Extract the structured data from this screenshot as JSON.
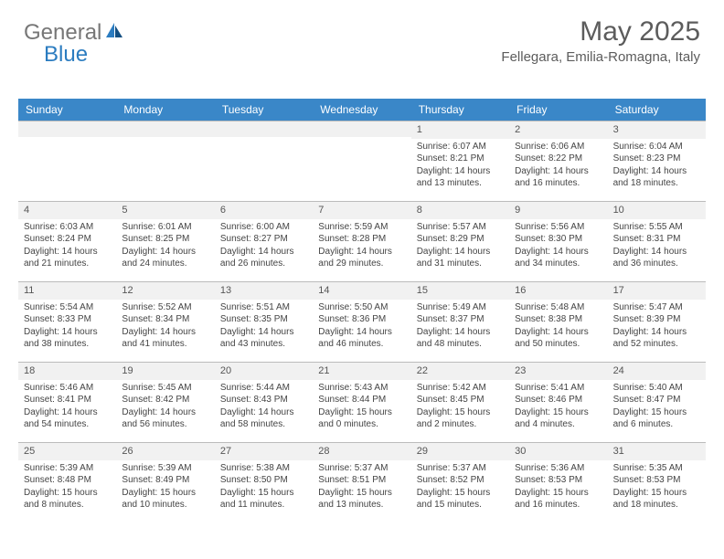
{
  "brand": {
    "part1": "General",
    "part2": "Blue"
  },
  "header": {
    "month_title": "May 2025",
    "location": "Fellegara, Emilia-Romagna, Italy"
  },
  "colors": {
    "header_bg": "#3a87c8",
    "header_text": "#ffffff",
    "num_row_bg": "#f1f1f1",
    "border": "#bbbbbb",
    "text": "#444444",
    "logo_accent": "#2b7cc0"
  },
  "day_names": [
    "Sunday",
    "Monday",
    "Tuesday",
    "Wednesday",
    "Thursday",
    "Friday",
    "Saturday"
  ],
  "weeks": [
    [
      {
        "n": "",
        "sr": "",
        "ss": "",
        "dl": ""
      },
      {
        "n": "",
        "sr": "",
        "ss": "",
        "dl": ""
      },
      {
        "n": "",
        "sr": "",
        "ss": "",
        "dl": ""
      },
      {
        "n": "",
        "sr": "",
        "ss": "",
        "dl": ""
      },
      {
        "n": "1",
        "sr": "Sunrise: 6:07 AM",
        "ss": "Sunset: 8:21 PM",
        "dl": "Daylight: 14 hours and 13 minutes."
      },
      {
        "n": "2",
        "sr": "Sunrise: 6:06 AM",
        "ss": "Sunset: 8:22 PM",
        "dl": "Daylight: 14 hours and 16 minutes."
      },
      {
        "n": "3",
        "sr": "Sunrise: 6:04 AM",
        "ss": "Sunset: 8:23 PM",
        "dl": "Daylight: 14 hours and 18 minutes."
      }
    ],
    [
      {
        "n": "4",
        "sr": "Sunrise: 6:03 AM",
        "ss": "Sunset: 8:24 PM",
        "dl": "Daylight: 14 hours and 21 minutes."
      },
      {
        "n": "5",
        "sr": "Sunrise: 6:01 AM",
        "ss": "Sunset: 8:25 PM",
        "dl": "Daylight: 14 hours and 24 minutes."
      },
      {
        "n": "6",
        "sr": "Sunrise: 6:00 AM",
        "ss": "Sunset: 8:27 PM",
        "dl": "Daylight: 14 hours and 26 minutes."
      },
      {
        "n": "7",
        "sr": "Sunrise: 5:59 AM",
        "ss": "Sunset: 8:28 PM",
        "dl": "Daylight: 14 hours and 29 minutes."
      },
      {
        "n": "8",
        "sr": "Sunrise: 5:57 AM",
        "ss": "Sunset: 8:29 PM",
        "dl": "Daylight: 14 hours and 31 minutes."
      },
      {
        "n": "9",
        "sr": "Sunrise: 5:56 AM",
        "ss": "Sunset: 8:30 PM",
        "dl": "Daylight: 14 hours and 34 minutes."
      },
      {
        "n": "10",
        "sr": "Sunrise: 5:55 AM",
        "ss": "Sunset: 8:31 PM",
        "dl": "Daylight: 14 hours and 36 minutes."
      }
    ],
    [
      {
        "n": "11",
        "sr": "Sunrise: 5:54 AM",
        "ss": "Sunset: 8:33 PM",
        "dl": "Daylight: 14 hours and 38 minutes."
      },
      {
        "n": "12",
        "sr": "Sunrise: 5:52 AM",
        "ss": "Sunset: 8:34 PM",
        "dl": "Daylight: 14 hours and 41 minutes."
      },
      {
        "n": "13",
        "sr": "Sunrise: 5:51 AM",
        "ss": "Sunset: 8:35 PM",
        "dl": "Daylight: 14 hours and 43 minutes."
      },
      {
        "n": "14",
        "sr": "Sunrise: 5:50 AM",
        "ss": "Sunset: 8:36 PM",
        "dl": "Daylight: 14 hours and 46 minutes."
      },
      {
        "n": "15",
        "sr": "Sunrise: 5:49 AM",
        "ss": "Sunset: 8:37 PM",
        "dl": "Daylight: 14 hours and 48 minutes."
      },
      {
        "n": "16",
        "sr": "Sunrise: 5:48 AM",
        "ss": "Sunset: 8:38 PM",
        "dl": "Daylight: 14 hours and 50 minutes."
      },
      {
        "n": "17",
        "sr": "Sunrise: 5:47 AM",
        "ss": "Sunset: 8:39 PM",
        "dl": "Daylight: 14 hours and 52 minutes."
      }
    ],
    [
      {
        "n": "18",
        "sr": "Sunrise: 5:46 AM",
        "ss": "Sunset: 8:41 PM",
        "dl": "Daylight: 14 hours and 54 minutes."
      },
      {
        "n": "19",
        "sr": "Sunrise: 5:45 AM",
        "ss": "Sunset: 8:42 PM",
        "dl": "Daylight: 14 hours and 56 minutes."
      },
      {
        "n": "20",
        "sr": "Sunrise: 5:44 AM",
        "ss": "Sunset: 8:43 PM",
        "dl": "Daylight: 14 hours and 58 minutes."
      },
      {
        "n": "21",
        "sr": "Sunrise: 5:43 AM",
        "ss": "Sunset: 8:44 PM",
        "dl": "Daylight: 15 hours and 0 minutes."
      },
      {
        "n": "22",
        "sr": "Sunrise: 5:42 AM",
        "ss": "Sunset: 8:45 PM",
        "dl": "Daylight: 15 hours and 2 minutes."
      },
      {
        "n": "23",
        "sr": "Sunrise: 5:41 AM",
        "ss": "Sunset: 8:46 PM",
        "dl": "Daylight: 15 hours and 4 minutes."
      },
      {
        "n": "24",
        "sr": "Sunrise: 5:40 AM",
        "ss": "Sunset: 8:47 PM",
        "dl": "Daylight: 15 hours and 6 minutes."
      }
    ],
    [
      {
        "n": "25",
        "sr": "Sunrise: 5:39 AM",
        "ss": "Sunset: 8:48 PM",
        "dl": "Daylight: 15 hours and 8 minutes."
      },
      {
        "n": "26",
        "sr": "Sunrise: 5:39 AM",
        "ss": "Sunset: 8:49 PM",
        "dl": "Daylight: 15 hours and 10 minutes."
      },
      {
        "n": "27",
        "sr": "Sunrise: 5:38 AM",
        "ss": "Sunset: 8:50 PM",
        "dl": "Daylight: 15 hours and 11 minutes."
      },
      {
        "n": "28",
        "sr": "Sunrise: 5:37 AM",
        "ss": "Sunset: 8:51 PM",
        "dl": "Daylight: 15 hours and 13 minutes."
      },
      {
        "n": "29",
        "sr": "Sunrise: 5:37 AM",
        "ss": "Sunset: 8:52 PM",
        "dl": "Daylight: 15 hours and 15 minutes."
      },
      {
        "n": "30",
        "sr": "Sunrise: 5:36 AM",
        "ss": "Sunset: 8:53 PM",
        "dl": "Daylight: 15 hours and 16 minutes."
      },
      {
        "n": "31",
        "sr": "Sunrise: 5:35 AM",
        "ss": "Sunset: 8:53 PM",
        "dl": "Daylight: 15 hours and 18 minutes."
      }
    ]
  ]
}
